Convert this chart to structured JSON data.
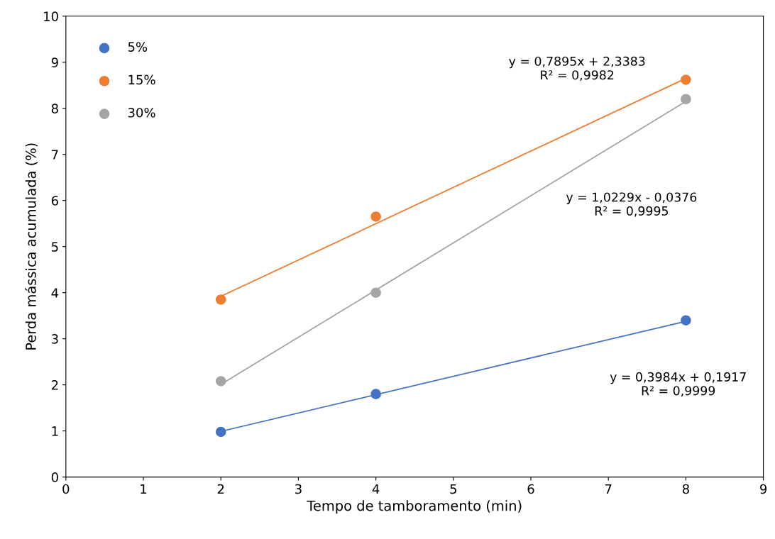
{
  "chart_data": {
    "type": "scatter",
    "xlabel": "Tempo de tamboramento (min)",
    "ylabel": "Perda mássica acumulada (%)",
    "xlim": [
      0,
      9
    ],
    "xticks": [
      0,
      1,
      2,
      3,
      4,
      5,
      6,
      7,
      8,
      9
    ],
    "ylim": [
      0,
      10
    ],
    "yticks": [
      0,
      1,
      2,
      3,
      4,
      5,
      6,
      7,
      8,
      9,
      10
    ],
    "grid": false,
    "legend": "top left",
    "series": [
      {
        "name": "5%",
        "color": "#4472c4",
        "marker": "circle",
        "x": [
          2,
          4,
          8
        ],
        "values": [
          0.98,
          1.8,
          3.4
        ]
      },
      {
        "name": "15%",
        "color": "#ed7d31",
        "marker": "circle",
        "x": [
          2,
          4,
          8
        ],
        "values": [
          3.85,
          5.65,
          8.62
        ]
      },
      {
        "name": "30%",
        "color": "#a5a5a5",
        "marker": "circle",
        "x": [
          2,
          4,
          8
        ],
        "values": [
          2.08,
          4.0,
          8.2
        ]
      },
      {
        "type": "line",
        "color": "#4472c4",
        "marker": "none",
        "x": [
          2,
          8
        ],
        "values": [
          0.99,
          3.38
        ]
      },
      {
        "type": "line",
        "color": "#ed7d31",
        "marker": "none",
        "x": [
          2,
          8
        ],
        "values": [
          3.92,
          8.65
        ]
      },
      {
        "type": "line",
        "color": "#a5a5a5",
        "marker": "none",
        "x": [
          2,
          8
        ],
        "values": [
          2.01,
          8.15
        ]
      }
    ],
    "annotations": [
      "y = 0,7895x + 2,3383\nR² = 0,9982",
      "y = 1,0229x - 0,0376\nR² = 0,9995",
      "y = 0,3984x + 0,1917\nR² = 0,9999"
    ]
  }
}
